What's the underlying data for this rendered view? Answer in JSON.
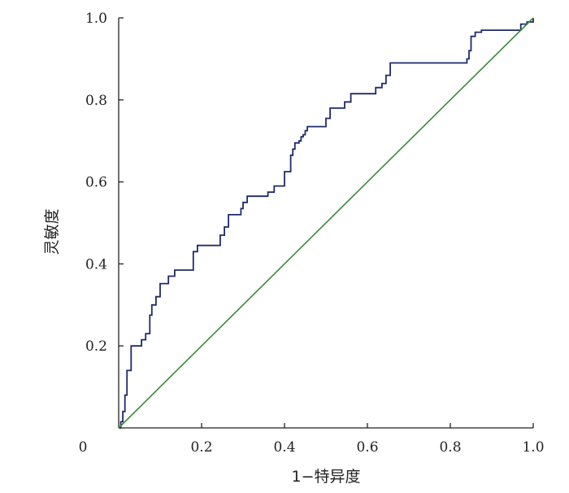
{
  "chart_data": {
    "type": "line",
    "title": "",
    "xlabel": "1−特异度",
    "ylabel": "灵敏度",
    "xlim": [
      0,
      1
    ],
    "ylim": [
      0,
      1
    ],
    "x_ticks": [
      "0",
      "0.2",
      "0.4",
      "0.6",
      "0.8",
      "1.0"
    ],
    "y_ticks": [
      "0.2",
      "0.4",
      "0.6",
      "0.8",
      "1.0"
    ],
    "grid": false,
    "legend": "none",
    "series": [
      {
        "style": "step",
        "color": "#1f2a6b",
        "x": [
          0.0,
          0.005,
          0.005,
          0.01,
          0.01,
          0.015,
          0.015,
          0.02,
          0.02,
          0.03,
          0.03,
          0.055,
          0.055,
          0.065,
          0.065,
          0.075,
          0.075,
          0.08,
          0.08,
          0.09,
          0.09,
          0.1,
          0.1,
          0.12,
          0.12,
          0.135,
          0.135,
          0.18,
          0.18,
          0.19,
          0.19,
          0.245,
          0.245,
          0.255,
          0.255,
          0.265,
          0.265,
          0.295,
          0.295,
          0.3,
          0.3,
          0.31,
          0.31,
          0.36,
          0.36,
          0.375,
          0.375,
          0.4,
          0.4,
          0.415,
          0.415,
          0.42,
          0.42,
          0.425,
          0.425,
          0.435,
          0.435,
          0.44,
          0.44,
          0.445,
          0.445,
          0.45,
          0.45,
          0.455,
          0.455,
          0.465,
          0.465,
          0.5,
          0.5,
          0.51,
          0.51,
          0.545,
          0.545,
          0.56,
          0.56,
          0.62,
          0.62,
          0.635,
          0.635,
          0.645,
          0.645,
          0.655,
          0.655,
          0.84,
          0.84,
          0.845,
          0.845,
          0.85,
          0.85,
          0.86,
          0.86,
          0.875,
          0.875,
          0.97,
          0.97,
          0.985,
          0.985,
          1.0,
          1.0
        ],
        "y": [
          0.0,
          0.0,
          0.015,
          0.015,
          0.04,
          0.04,
          0.08,
          0.08,
          0.14,
          0.14,
          0.2,
          0.2,
          0.215,
          0.215,
          0.23,
          0.23,
          0.275,
          0.275,
          0.3,
          0.3,
          0.32,
          0.32,
          0.352,
          0.352,
          0.37,
          0.37,
          0.385,
          0.385,
          0.43,
          0.43,
          0.445,
          0.445,
          0.47,
          0.47,
          0.49,
          0.49,
          0.52,
          0.52,
          0.535,
          0.535,
          0.55,
          0.55,
          0.565,
          0.565,
          0.575,
          0.575,
          0.59,
          0.59,
          0.625,
          0.625,
          0.665,
          0.665,
          0.68,
          0.68,
          0.695,
          0.695,
          0.7,
          0.7,
          0.71,
          0.71,
          0.715,
          0.715,
          0.725,
          0.725,
          0.735,
          0.735,
          0.735,
          0.735,
          0.755,
          0.755,
          0.78,
          0.78,
          0.795,
          0.795,
          0.815,
          0.815,
          0.83,
          0.83,
          0.84,
          0.84,
          0.86,
          0.86,
          0.89,
          0.89,
          0.9,
          0.9,
          0.92,
          0.92,
          0.955,
          0.955,
          0.965,
          0.965,
          0.97,
          0.97,
          0.985,
          0.985,
          0.99,
          0.99,
          1.0
        ]
      },
      {
        "style": "line",
        "color": "#3a8a3a",
        "x": [
          0,
          1
        ],
        "y": [
          0,
          1
        ]
      }
    ]
  }
}
